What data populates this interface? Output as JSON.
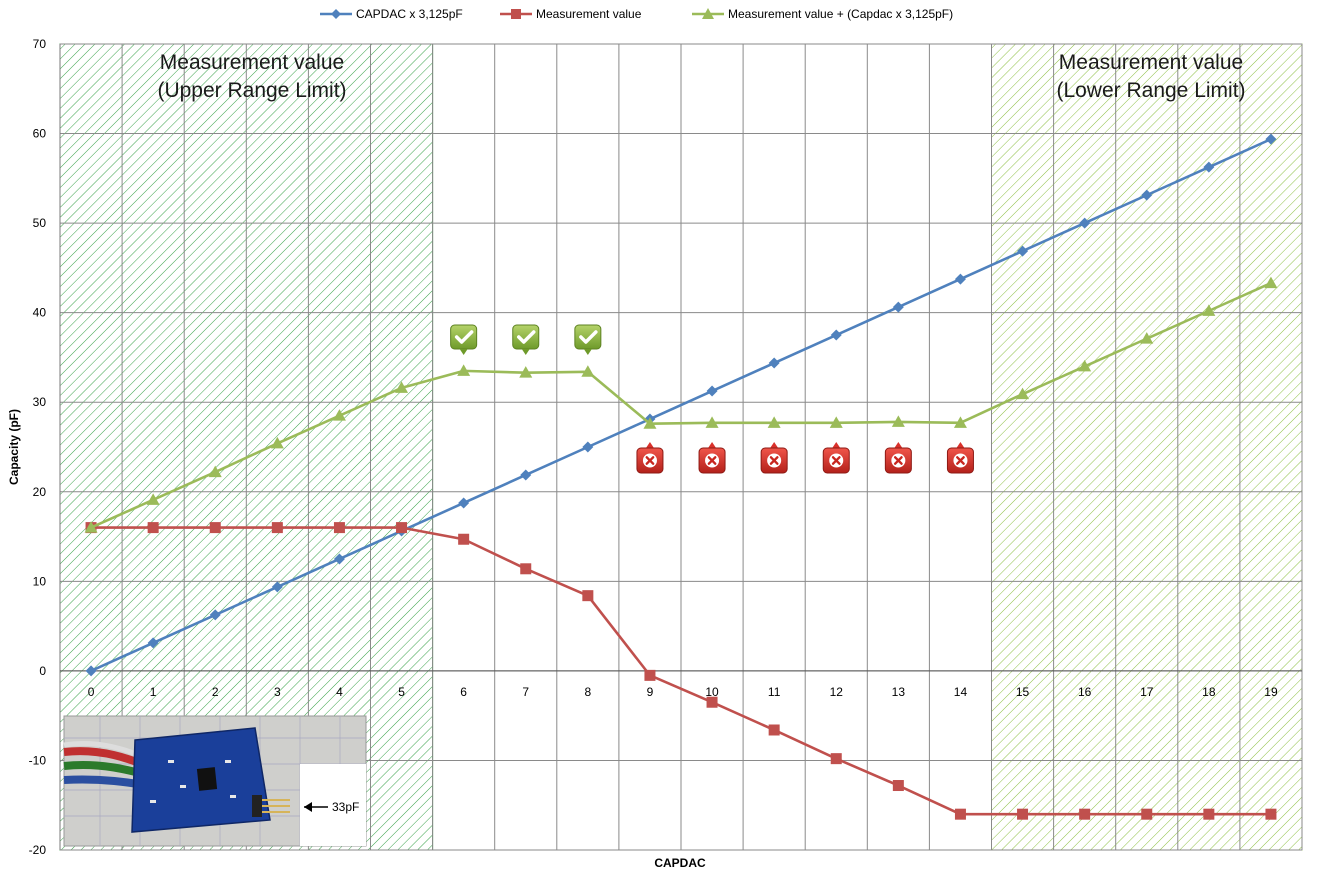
{
  "chart_data": {
    "type": "line",
    "xlabel": "CAPDAC",
    "ylabel": "Capacity (pF)",
    "categories": [
      "0",
      "1",
      "2",
      "3",
      "4",
      "5",
      "6",
      "7",
      "8",
      "9",
      "10",
      "11",
      "12",
      "13",
      "14",
      "15",
      "16",
      "17",
      "18",
      "19"
    ],
    "ylim": [
      -20,
      70
    ],
    "yticks": [
      -20,
      -10,
      0,
      10,
      20,
      30,
      40,
      50,
      60,
      70
    ],
    "grid": true,
    "legend_position": "top",
    "series": [
      {
        "name": "CAPDAC x 3,125pF",
        "color": "#4F81BD",
        "marker": "diamond",
        "values": [
          0,
          3.125,
          6.25,
          9.375,
          12.5,
          15.625,
          18.75,
          21.875,
          25,
          28.125,
          31.25,
          34.375,
          37.5,
          40.625,
          43.75,
          46.875,
          50,
          53.125,
          56.25,
          59.375
        ]
      },
      {
        "name": "Measurement value",
        "color": "#C0504D",
        "marker": "square",
        "values": [
          16,
          16,
          16,
          16,
          16,
          16,
          14.7,
          11.4,
          8.4,
          -0.5,
          -3.5,
          -6.6,
          -9.8,
          -12.8,
          -16,
          -16,
          -16,
          -16,
          -16,
          -16
        ]
      },
      {
        "name": "Measurement value + (Capdac x 3,125pF)",
        "color": "#9BBB59",
        "marker": "triangle",
        "values": [
          16,
          19.1,
          22.2,
          25.4,
          28.5,
          31.6,
          33.5,
          33.3,
          33.4,
          27.6,
          27.7,
          27.7,
          27.7,
          27.8,
          27.7,
          30.9,
          34,
          37.1,
          40.2,
          43.3
        ]
      }
    ],
    "shaded_regions": [
      {
        "x_from": -0.5,
        "x_to": 5.5,
        "label_line1": "Measurement value",
        "label_line2": "(Upper Range Limit)"
      },
      {
        "x_from": 14.5,
        "x_to": 19.5,
        "label_line1": "Measurement value",
        "label_line2": "(Lower Range Limit)"
      }
    ],
    "status_icons": [
      {
        "x": 6,
        "status": "ok",
        "icon": "checkmark-icon",
        "color": "#8CB43C"
      },
      {
        "x": 7,
        "status": "ok",
        "icon": "checkmark-icon",
        "color": "#8CB43C"
      },
      {
        "x": 8,
        "status": "ok",
        "icon": "checkmark-icon",
        "color": "#8CB43C"
      },
      {
        "x": 9,
        "status": "fail",
        "icon": "cross-icon",
        "color": "#D9312B"
      },
      {
        "x": 10,
        "status": "fail",
        "icon": "cross-icon",
        "color": "#D9312B"
      },
      {
        "x": 11,
        "status": "fail",
        "icon": "cross-icon",
        "color": "#D9312B"
      },
      {
        "x": 12,
        "status": "fail",
        "icon": "cross-icon",
        "color": "#D9312B"
      },
      {
        "x": 13,
        "status": "fail",
        "icon": "cross-icon",
        "color": "#D9312B"
      },
      {
        "x": 14,
        "status": "fail",
        "icon": "cross-icon",
        "color": "#D9312B"
      }
    ],
    "inset_photo": {
      "icon": "pcb-photo",
      "caption": "33pF"
    }
  }
}
